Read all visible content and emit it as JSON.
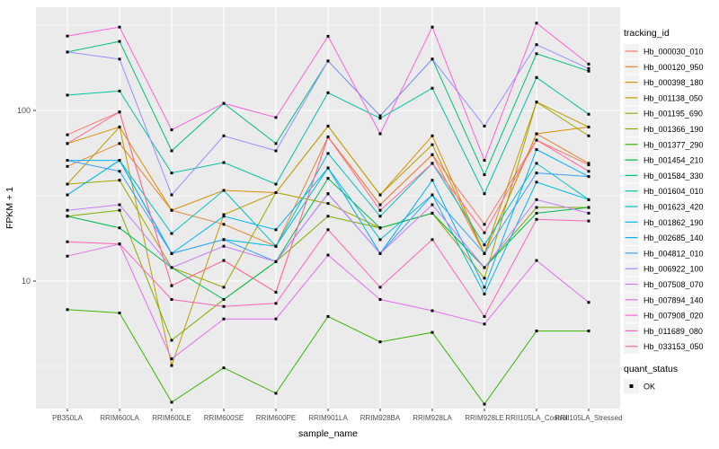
{
  "chart_data": {
    "type": "line",
    "title": "",
    "xlabel": "sample_name",
    "ylabel": "FPKM + 1",
    "y_scale": "log10",
    "grid": true,
    "legend_position": "right",
    "panel_bg": "#EBEBEB",
    "grid_color": "#FFFFFF",
    "tick_color": "#333333",
    "tick_label_color": "#4D4D4D",
    "marker_color": "#000000",
    "ylim": [
      1.8,
      400
    ],
    "y_major_ticks": [
      10,
      100
    ],
    "y_major_tick_labels": [
      "10",
      "100"
    ],
    "y_minor_gridlines": [
      3.162,
      31.623,
      316.228
    ],
    "categories": [
      "PB350LA",
      "RRIM600LA",
      "RRIM600LE",
      "RRIM600SE",
      "RRIM600PE",
      "RRIM901LA",
      "RRIM928BA",
      "RRIM928LA",
      "RRIM928LE",
      "RRII105LA_Control",
      "RRII105LA_Stressed"
    ],
    "series": [
      {
        "name": "Hb_000030_010",
        "color": "#F8766D",
        "values": [
          72,
          98,
          9.4,
          13.2,
          8.6,
          70,
          28,
          55,
          21.5,
          67,
          48
        ]
      },
      {
        "name": "Hb_000120_950",
        "color": "#EA8331",
        "values": [
          47,
          64,
          26,
          21.5,
          16,
          70,
          28,
          55,
          14.5,
          73,
          49
        ]
      },
      {
        "name": "Hb_000398_180",
        "color": "#D89000",
        "values": [
          64,
          80,
          26,
          34,
          33,
          81,
          32,
          71,
          14.5,
          73,
          80
        ]
      },
      {
        "name": "Hb_001138_050",
        "color": "#C09B00",
        "values": [
          37,
          80,
          3.2,
          24.5,
          33,
          81,
          32,
          63,
          14.5,
          112,
          80
        ]
      },
      {
        "name": "Hb_001195_690",
        "color": "#A3A500",
        "values": [
          37,
          39,
          12,
          9.2,
          33,
          28.5,
          20.5,
          25,
          10.4,
          112,
          71
        ]
      },
      {
        "name": "Hb_001366_190",
        "color": "#7CAE00",
        "values": [
          24,
          26,
          4.5,
          7.8,
          13,
          24,
          20.5,
          25,
          12,
          27,
          27
        ]
      },
      {
        "name": "Hb_001377_290",
        "color": "#39B600",
        "values": [
          6.8,
          6.5,
          1.95,
          3.1,
          2.2,
          6.2,
          4.4,
          5,
          1.9,
          5.1,
          5.1
        ]
      },
      {
        "name": "Hb_001454_210",
        "color": "#00BB4E",
        "values": [
          24,
          20.5,
          12,
          7.8,
          13,
          40,
          20.5,
          25,
          12,
          25,
          27
        ]
      },
      {
        "name": "Hb_001584_330",
        "color": "#00BF7D",
        "values": [
          220,
          254,
          58,
          110,
          64,
          195,
          93,
          200,
          42,
          215,
          170
        ]
      },
      {
        "name": "Hb_001604_010",
        "color": "#00C1A3",
        "values": [
          123,
          130,
          43,
          49.5,
          37,
          127,
          90,
          135,
          32.5,
          156,
          95
        ]
      },
      {
        "name": "Hb_001623_420",
        "color": "#00BFC4",
        "values": [
          32,
          51,
          19,
          34,
          16,
          56,
          24,
          49,
          16.3,
          49,
          30
        ]
      },
      {
        "name": "Hb_001862_190",
        "color": "#00BAE0",
        "values": [
          32,
          51,
          14.5,
          17.5,
          16,
          46,
          17.5,
          32,
          8.4,
          38,
          30
        ]
      },
      {
        "name": "Hb_002685_140",
        "color": "#00B0F6",
        "values": [
          51,
          51,
          14.5,
          24,
          20,
          46,
          14.5,
          39,
          9.2,
          59,
          41
        ]
      },
      {
        "name": "Hb_004812_010",
        "color": "#35A2FF",
        "values": [
          51,
          44,
          14.5,
          17.5,
          13,
          32.5,
          14.5,
          32,
          14.5,
          43,
          41
        ]
      },
      {
        "name": "Hb_006922_100",
        "color": "#9590FF",
        "values": [
          220,
          200,
          32,
          71,
          58,
          195,
          93,
          200,
          81,
          243,
          176
        ]
      },
      {
        "name": "Hb_007508_070",
        "color": "#C77CFF",
        "values": [
          26,
          28,
          12,
          16,
          13,
          32.5,
          14.5,
          28,
          12,
          30,
          25
        ]
      },
      {
        "name": "Hb_007894_140",
        "color": "#E76BF3",
        "values": [
          14,
          16.5,
          3.5,
          6,
          6,
          14.2,
          7.8,
          6.7,
          5.6,
          13.2,
          7.5
        ]
      },
      {
        "name": "Hb_007908_020",
        "color": "#FA62DB",
        "values": [
          273,
          308,
          77,
          110,
          91,
          272,
          73,
          308,
          51,
          325,
          187
        ]
      },
      {
        "name": "Hb_011689_080",
        "color": "#FF62BC",
        "values": [
          17,
          16.5,
          7.8,
          7.1,
          7.4,
          20,
          9.2,
          17.5,
          6.2,
          23,
          22.5
        ]
      },
      {
        "name": "Hb_033153_050",
        "color": "#FF6A98",
        "values": [
          64,
          98,
          9.4,
          13.2,
          8.6,
          70,
          26,
          49,
          19.2,
          67,
          44
        ]
      }
    ],
    "legend": {
      "color_title": "tracking_id",
      "shape_title": "quant_status",
      "shape_items": [
        {
          "label": "OK",
          "marker": "black-square"
        }
      ],
      "key_bg": "#F2F2F2"
    }
  }
}
